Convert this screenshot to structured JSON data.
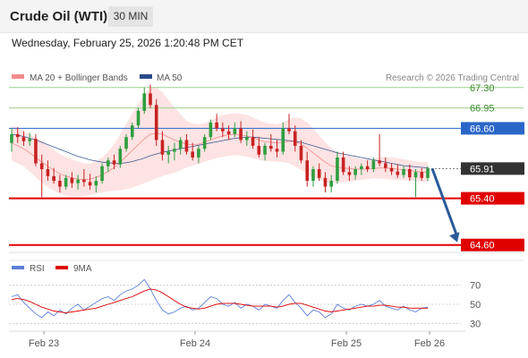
{
  "header": {
    "instrument": "Crude Oil (WTI)",
    "timeframe": "30 MIN",
    "datetime": "Wednesday, February 25, 2026 1:20:48 PM CET"
  },
  "legend": {
    "items": [
      {
        "label": "MA 20 + Bollinger Bands",
        "color": "#f28c8c"
      },
      {
        "label": "MA 50",
        "color": "#2b4a8a"
      }
    ],
    "credit": "Research © 2026 Trading Central"
  },
  "colors": {
    "bull": "#2e9e3e",
    "bear": "#c82222",
    "target_green": "#9bd28a",
    "pivot_blue": "#2a66c8",
    "support_red": "#e00000",
    "arrow": "#2a5a98",
    "bands": "#fde3e3"
  },
  "rsi_legend": [
    {
      "label": "RSI",
      "color": "#5b7fd8"
    },
    {
      "label": "9MA",
      "color": "#e00000"
    }
  ],
  "chart_data": [
    {
      "type": "candlestick",
      "title": "Crude Oil (WTI)",
      "timeframe": "30 MIN",
      "ylim": [
        64.35,
        67.45
      ],
      "x_ticks": [
        "Feb 23",
        "Feb 24",
        "Feb 25",
        "Feb 26"
      ],
      "levels": [
        {
          "value": 67.3,
          "label": "67.30",
          "kind": "resistance-target",
          "color": "#9bd28a"
        },
        {
          "value": 66.95,
          "label": "66.95",
          "kind": "resistance-target",
          "color": "#9bd28a"
        },
        {
          "value": 66.6,
          "label": "66.60",
          "kind": "pivot",
          "color": "#2a66c8"
        },
        {
          "value": 65.91,
          "label": "65.91",
          "kind": "last-price",
          "color": "#333333"
        },
        {
          "value": 65.4,
          "label": "65.40",
          "kind": "support",
          "color": "#e00000"
        },
        {
          "value": 64.6,
          "label": "64.60",
          "kind": "support-target",
          "color": "#e00000"
        }
      ],
      "last_price": 65.91,
      "projection": {
        "from": 65.91,
        "to": 64.6,
        "direction": "down"
      },
      "candles": [
        [
          66.35,
          66.6,
          66.2,
          66.5
        ],
        [
          66.5,
          66.62,
          66.35,
          66.45
        ],
        [
          66.45,
          66.55,
          66.3,
          66.38
        ],
        [
          66.38,
          66.52,
          66.3,
          66.42
        ],
        [
          66.42,
          66.5,
          65.95,
          66.0
        ],
        [
          66.0,
          66.15,
          65.42,
          65.9
        ],
        [
          65.9,
          66.05,
          65.7,
          65.78
        ],
        [
          65.78,
          65.92,
          65.65,
          65.7
        ],
        [
          65.7,
          65.8,
          65.5,
          65.6
        ],
        [
          65.6,
          65.8,
          65.55,
          65.75
        ],
        [
          65.75,
          65.85,
          65.58,
          65.66
        ],
        [
          65.66,
          65.8,
          65.55,
          65.72
        ],
        [
          65.72,
          65.9,
          65.6,
          65.68
        ],
        [
          65.68,
          65.82,
          65.55,
          65.62
        ],
        [
          65.62,
          65.78,
          65.5,
          65.7
        ],
        [
          65.7,
          66.0,
          65.65,
          65.95
        ],
        [
          65.95,
          66.1,
          65.85,
          66.05
        ],
        [
          66.05,
          66.15,
          65.9,
          65.98
        ],
        [
          65.98,
          66.3,
          65.92,
          66.25
        ],
        [
          66.25,
          66.5,
          66.2,
          66.45
        ],
        [
          66.45,
          66.7,
          66.4,
          66.65
        ],
        [
          66.65,
          66.95,
          66.6,
          66.9
        ],
        [
          66.9,
          67.3,
          66.85,
          67.2
        ],
        [
          67.2,
          67.35,
          66.95,
          67.0
        ],
        [
          67.0,
          67.1,
          66.3,
          66.4
        ],
        [
          66.4,
          66.55,
          66.05,
          66.15
        ],
        [
          66.15,
          66.3,
          66.0,
          66.2
        ],
        [
          66.2,
          66.35,
          66.05,
          66.25
        ],
        [
          66.25,
          66.45,
          66.15,
          66.4
        ],
        [
          66.4,
          66.5,
          66.15,
          66.2
        ],
        [
          66.2,
          66.35,
          66.05,
          66.1
        ],
        [
          66.1,
          66.3,
          66.0,
          66.25
        ],
        [
          66.25,
          66.5,
          66.2,
          66.45
        ],
        [
          66.45,
          66.75,
          66.4,
          66.7
        ],
        [
          66.7,
          66.85,
          66.55,
          66.6
        ],
        [
          66.6,
          66.7,
          66.45,
          66.55
        ],
        [
          66.55,
          66.65,
          66.4,
          66.5
        ],
        [
          66.5,
          66.7,
          66.45,
          66.6
        ],
        [
          66.6,
          66.72,
          66.35,
          66.4
        ],
        [
          66.4,
          66.55,
          66.3,
          66.45
        ],
        [
          66.45,
          66.58,
          66.25,
          66.3
        ],
        [
          66.3,
          66.45,
          66.1,
          66.15
        ],
        [
          66.15,
          66.35,
          66.05,
          66.3
        ],
        [
          66.3,
          66.5,
          66.2,
          66.25
        ],
        [
          66.25,
          66.4,
          66.1,
          66.2
        ],
        [
          66.2,
          66.7,
          66.15,
          66.6
        ],
        [
          66.6,
          66.85,
          66.5,
          66.55
        ],
        [
          66.55,
          66.65,
          66.2,
          66.3
        ],
        [
          66.3,
          66.4,
          66.0,
          66.05
        ],
        [
          66.05,
          66.2,
          65.6,
          65.7
        ],
        [
          65.7,
          65.95,
          65.6,
          65.9
        ],
        [
          65.9,
          66.0,
          65.7,
          65.75
        ],
        [
          65.75,
          65.85,
          65.5,
          65.6
        ],
        [
          65.6,
          65.8,
          65.5,
          65.7
        ],
        [
          65.7,
          66.2,
          65.65,
          66.1
        ],
        [
          66.1,
          66.2,
          65.8,
          65.85
        ],
        [
          65.85,
          65.95,
          65.7,
          65.8
        ],
        [
          65.8,
          65.95,
          65.72,
          65.9
        ],
        [
          65.9,
          66.0,
          65.8,
          65.95
        ],
        [
          65.95,
          66.05,
          65.85,
          65.9
        ],
        [
          65.9,
          66.1,
          65.85,
          66.05
        ],
        [
          66.05,
          66.5,
          65.95,
          66.0
        ],
        [
          66.0,
          66.1,
          65.85,
          65.92
        ],
        [
          65.92,
          66.0,
          65.8,
          65.86
        ],
        [
          65.86,
          65.98,
          65.75,
          65.8
        ],
        [
          65.8,
          65.95,
          65.75,
          65.9
        ],
        [
          65.9,
          65.98,
          65.7,
          65.76
        ],
        [
          65.76,
          65.9,
          65.42,
          65.85
        ],
        [
          65.85,
          65.92,
          65.7,
          65.75
        ],
        [
          65.75,
          65.95,
          65.7,
          65.91
        ]
      ],
      "ma20": [
        66.35,
        66.3,
        66.25,
        66.18,
        66.1,
        66.02,
        65.95,
        65.88,
        65.82,
        65.78,
        65.75,
        65.73,
        65.72,
        65.73,
        65.76,
        65.8,
        65.86,
        65.93,
        66.02,
        66.12,
        66.22,
        66.32,
        66.42,
        66.5,
        66.52,
        66.5,
        66.45,
        66.4,
        66.36,
        66.33,
        66.32,
        66.33,
        66.36,
        66.4,
        66.44,
        66.47,
        66.49,
        66.5,
        66.49,
        66.47,
        66.44,
        66.4,
        66.37,
        66.36,
        66.35,
        66.36,
        66.38,
        66.37,
        66.33,
        66.26,
        66.18,
        66.1,
        66.02,
        65.96,
        65.93,
        65.92,
        65.91,
        65.9,
        65.9,
        65.9,
        65.91,
        65.92,
        65.92,
        65.91,
        65.9,
        65.89,
        65.88,
        65.86,
        65.85,
        65.85
      ],
      "ma50": [
        66.5,
        66.48,
        66.46,
        66.43,
        66.4,
        66.36,
        66.32,
        66.28,
        66.24,
        66.2,
        66.16,
        66.12,
        66.09,
        66.06,
        66.04,
        66.02,
        66.01,
        66.0,
        66.0,
        66.01,
        66.03,
        66.06,
        66.09,
        66.13,
        66.16,
        66.19,
        66.21,
        66.23,
        66.25,
        66.27,
        66.29,
        66.31,
        66.33,
        66.35,
        66.37,
        66.39,
        66.41,
        66.43,
        66.44,
        66.45,
        66.45,
        66.44,
        66.43,
        66.42,
        66.41,
        66.4,
        66.39,
        66.38,
        66.36,
        66.33,
        66.3,
        66.27,
        66.24,
        66.21,
        66.18,
        66.16,
        66.14,
        66.12,
        66.1,
        66.08,
        66.06,
        66.04,
        66.02,
        66.0,
        65.98,
        65.96,
        65.95,
        65.94,
        65.93,
        65.92
      ],
      "band_width": [
        0.3,
        0.3,
        0.3,
        0.32,
        0.34,
        0.36,
        0.36,
        0.35,
        0.34,
        0.33,
        0.32,
        0.3,
        0.28,
        0.27,
        0.28,
        0.3,
        0.34,
        0.4,
        0.48,
        0.56,
        0.64,
        0.7,
        0.76,
        0.8,
        0.78,
        0.72,
        0.64,
        0.56,
        0.48,
        0.4,
        0.36,
        0.34,
        0.33,
        0.34,
        0.35,
        0.36,
        0.36,
        0.36,
        0.36,
        0.36,
        0.35,
        0.34,
        0.33,
        0.32,
        0.32,
        0.34,
        0.38,
        0.42,
        0.44,
        0.44,
        0.42,
        0.38,
        0.34,
        0.3,
        0.27,
        0.24,
        0.22,
        0.2,
        0.18,
        0.17,
        0.17,
        0.18,
        0.19,
        0.19,
        0.19,
        0.18,
        0.17,
        0.17,
        0.17,
        0.17
      ]
    },
    {
      "type": "line",
      "name": "RSI",
      "ylim": [
        20,
        80
      ],
      "y_ticks": [
        70,
        50,
        30
      ],
      "series": [
        {
          "name": "RSI",
          "color": "#5b7fd8",
          "values": [
            58,
            60,
            52,
            46,
            40,
            36,
            42,
            38,
            44,
            40,
            46,
            50,
            44,
            48,
            52,
            56,
            58,
            54,
            60,
            64,
            66,
            70,
            76,
            66,
            54,
            44,
            40,
            42,
            46,
            48,
            44,
            46,
            52,
            58,
            56,
            50,
            48,
            52,
            46,
            50,
            48,
            44,
            50,
            48,
            46,
            54,
            60,
            52,
            46,
            38,
            44,
            42,
            36,
            40,
            50,
            46,
            44,
            48,
            50,
            48,
            50,
            54,
            48,
            46,
            44,
            48,
            44,
            42,
            46,
            47
          ]
        },
        {
          "name": "9MA",
          "color": "#e00000",
          "values": [
            55,
            56,
            55,
            53,
            50,
            47,
            45,
            43,
            42,
            41,
            42,
            43,
            44,
            45,
            46,
            48,
            50,
            52,
            54,
            56,
            58,
            61,
            64,
            66,
            65,
            62,
            58,
            54,
            50,
            47,
            46,
            45,
            46,
            48,
            50,
            51,
            51,
            51,
            50,
            49,
            48,
            48,
            48,
            48,
            47,
            48,
            50,
            51,
            51,
            49,
            47,
            45,
            43,
            42,
            43,
            44,
            45,
            46,
            47,
            48,
            48,
            49,
            49,
            48,
            47,
            47,
            46,
            46,
            46,
            46
          ]
        }
      ]
    }
  ]
}
